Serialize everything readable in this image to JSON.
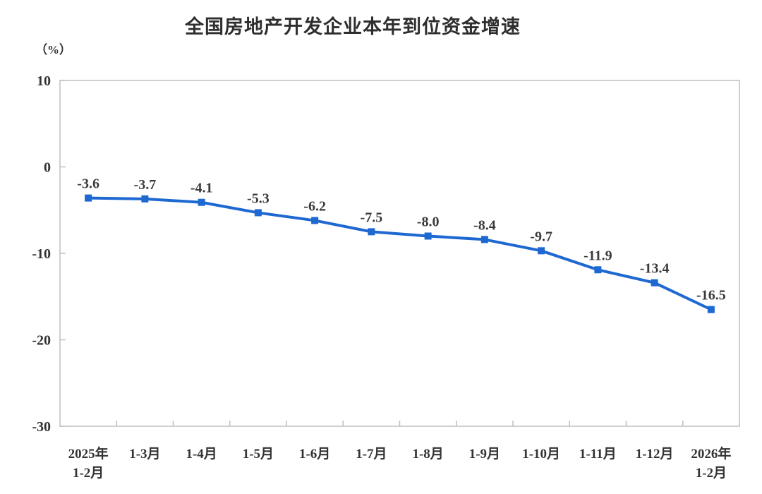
{
  "chart_data": {
    "type": "line",
    "title": "全国房地产开发企业本年到位资金增速",
    "unit_label": "（%）",
    "categories": [
      "2025年\n1-2月",
      "1-3月",
      "1-4月",
      "1-5月",
      "1-6月",
      "1-7月",
      "1-8月",
      "1-9月",
      "1-10月",
      "1-11月",
      "1-12月",
      "2026年\n1-2月"
    ],
    "values": [
      -3.6,
      -3.7,
      -4.1,
      -5.3,
      -6.2,
      -7.5,
      -8.0,
      -8.4,
      -9.7,
      -11.9,
      -13.4,
      -16.5
    ],
    "data_labels": [
      "-3.6",
      "-3.7",
      "-4.1",
      "-5.3",
      "-6.2",
      "-7.5",
      "-8.0",
      "-8.4",
      "-9.7",
      "-11.9",
      "-13.4",
      "-16.5"
    ],
    "xlabel": "",
    "ylabel": "（%）",
    "yticks": [
      10,
      0,
      -10,
      -20,
      -30
    ],
    "ylim": [
      -30,
      10
    ],
    "grid": false,
    "legend": "none",
    "marker": "square",
    "colors": {
      "line": "#1e68d2",
      "axis": "#bfbfbf",
      "text": "#333333",
      "background": "#ffffff"
    }
  }
}
